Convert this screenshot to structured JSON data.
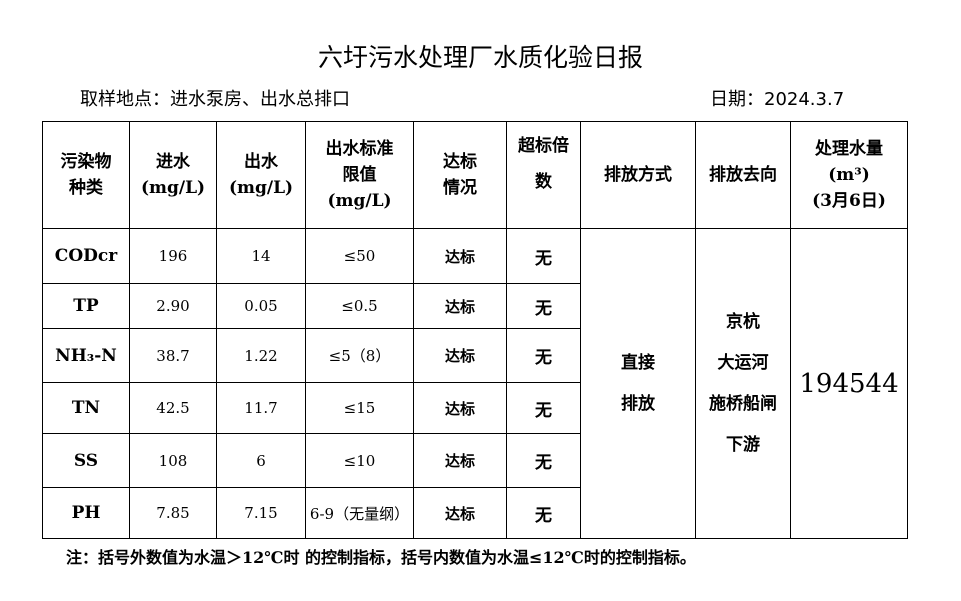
{
  "title": "六圩污水处理厂水质化验日报",
  "location": "取样地点：进水泵房、出水总排口",
  "date": "日期：2024.3.7",
  "headers": {
    "pollutant": [
      "污染物",
      "种类"
    ],
    "inflow": [
      "进水",
      "(mg/L)"
    ],
    "outflow": [
      "出水",
      "(mg/L)"
    ],
    "limit": [
      "出水标准",
      "限值",
      "(mg/L)"
    ],
    "status": [
      "达标",
      "情况"
    ],
    "exceed": [
      "超标倍",
      "数"
    ],
    "method": "排放方式",
    "destination": "排放去向",
    "volume": [
      "处理水量",
      "(m³)",
      "(3月6日)"
    ]
  },
  "rows": [
    {
      "name": "CODcr",
      "in": "196",
      "out": "14",
      "limit": "≤50",
      "status": "达标",
      "exceed": "无"
    },
    {
      "name": "TP",
      "in": "2.90",
      "out": "0.05",
      "limit": "≤0.5",
      "status": "达标",
      "exceed": "无"
    },
    {
      "name": "NH₃-N",
      "in": "38.7",
      "out": "1.22",
      "limit": "≤5（8）",
      "status": "达标",
      "exceed": "无"
    },
    {
      "name": "TN",
      "in": "42.5",
      "out": "11.7",
      "limit": "≤15",
      "status": "达标",
      "exceed": "无"
    },
    {
      "name": "SS",
      "in": "108",
      "out": "6",
      "limit": "≤10",
      "status": "达标",
      "exceed": "无"
    },
    {
      "name": "PH",
      "in": "7.85",
      "out": "7.15",
      "limit": "6-9（无量纲）",
      "status": "达标",
      "exceed": "无"
    }
  ],
  "method": [
    "直接",
    "排放"
  ],
  "destination": [
    "京杭",
    "大运河",
    "施桥船闸",
    "下游"
  ],
  "volume": "194544",
  "note": "注：括号外数值为水温＞12℃时 的控制指标，括号内数值为水温≤12℃时的控制指标。"
}
